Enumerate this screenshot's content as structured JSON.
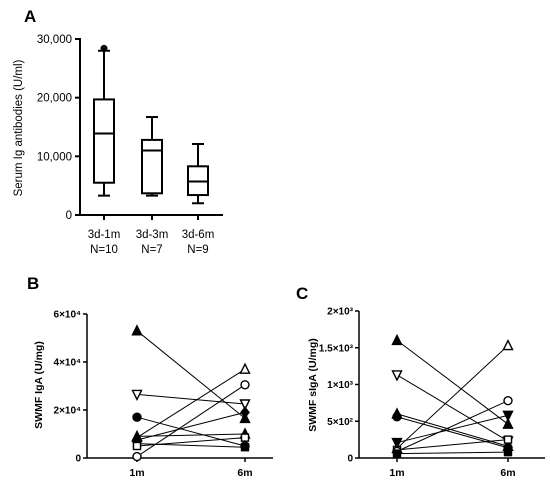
{
  "panels": {
    "A": {
      "letter": "A"
    },
    "B": {
      "letter": "B"
    },
    "C": {
      "letter": "C"
    }
  },
  "chart_data": [
    {
      "id": "A",
      "type": "box",
      "ylabel": "Serum Ig antibodies (U/ml)",
      "ylim": [
        0,
        30000
      ],
      "yticks": [
        0,
        10000,
        20000,
        30000
      ],
      "ytick_labels": [
        "0",
        "10,000",
        "20,000",
        "30,000"
      ],
      "categories": [
        "3d-1m",
        "3d-3m",
        "3d-6m"
      ],
      "n_labels": [
        "N=10",
        "N=7",
        "N=9"
      ],
      "boxes": [
        {
          "whisker_low": 3300,
          "q1": 5500,
          "median": 13900,
          "q3": 19700,
          "whisker_high": 28000,
          "outliers": [
            28400
          ]
        },
        {
          "whisker_low": 3300,
          "q1": 3700,
          "median": 11000,
          "q3": 12800,
          "whisker_high": 16700,
          "outliers": []
        },
        {
          "whisker_low": 2000,
          "q1": 3400,
          "median": 5700,
          "q3": 8300,
          "whisker_high": 12100,
          "outliers": []
        }
      ]
    },
    {
      "id": "B",
      "type": "paired-scatter",
      "ylabel": "SWMF IgA (U/mg)",
      "ylim": [
        0,
        60000
      ],
      "yticks": [
        0,
        20000,
        40000,
        60000
      ],
      "ytick_labels": [
        "0",
        "2×10⁴",
        "4×10⁴",
        "6×10⁴"
      ],
      "categories": [
        "1m",
        "6m"
      ],
      "pairs": [
        {
          "marker": "triangle-up-filled",
          "v1": 53000,
          "v2": 16500
        },
        {
          "marker": "triangle-down-open",
          "v1": 26500,
          "v2": 22500
        },
        {
          "marker": "circle-filled",
          "v1": 17000,
          "v2": 5000
        },
        {
          "marker": "triangle-up-open",
          "v1": 8500,
          "v2": 37000
        },
        {
          "marker": "diamond-filled",
          "v1": 7500,
          "v2": 19000
        },
        {
          "marker": "square-filled",
          "v1": 6000,
          "v2": 4500
        },
        {
          "marker": "triangle-up-filled",
          "v1": 9000,
          "v2": 10000
        },
        {
          "marker": "square-open",
          "v1": 5000,
          "v2": 8500
        },
        {
          "marker": "circle-open",
          "v1": 600,
          "v2": 30500
        }
      ]
    },
    {
      "id": "C",
      "type": "paired-scatter",
      "ylabel": "SWMF sIgA (U/mg)",
      "ylim": [
        0,
        2000
      ],
      "yticks": [
        0,
        500,
        1000,
        1500,
        2000
      ],
      "ytick_labels": [
        "0",
        "5×10²",
        "1×10³",
        "1.5×10³",
        "2×10³"
      ],
      "categories": [
        "1m",
        "6m"
      ],
      "pairs": [
        {
          "marker": "triangle-up-filled",
          "v1": 1600,
          "v2": 460
        },
        {
          "marker": "triangle-down-open",
          "v1": 1130,
          "v2": 230
        },
        {
          "marker": "triangle-up-filled",
          "v1": 600,
          "v2": 160
        },
        {
          "marker": "circle-filled",
          "v1": 560,
          "v2": 140
        },
        {
          "marker": "triangle-down-filled",
          "v1": 210,
          "v2": 580
        },
        {
          "marker": "triangle-up-open",
          "v1": 130,
          "v2": 1530
        },
        {
          "marker": "square-open",
          "v1": 110,
          "v2": 250
        },
        {
          "marker": "circle-open",
          "v1": 90,
          "v2": 780
        },
        {
          "marker": "square-filled",
          "v1": 60,
          "v2": 80
        }
      ]
    }
  ]
}
